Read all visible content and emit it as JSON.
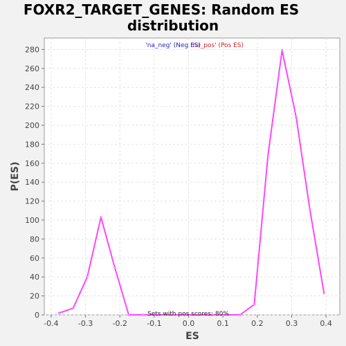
{
  "chart_data": {
    "type": "line",
    "title_line1": "FOXR2_TARGET_GENES: Random ES",
    "title_line2": "distribution",
    "xlabel": "ES",
    "ylabel": "P(ES)",
    "xlim": [
      -0.42,
      0.44
    ],
    "ylim": [
      0,
      292
    ],
    "xticks": [
      -0.4,
      -0.3,
      -0.2,
      -0.1,
      0.0,
      0.1,
      0.2,
      0.3,
      0.4
    ],
    "xtick_labels": [
      "-0.4",
      "-0.3",
      "-0.2",
      "-0.1",
      "0.0",
      "0.1",
      "0.2",
      "0.3",
      "0.4"
    ],
    "yticks": [
      0,
      20,
      40,
      60,
      80,
      100,
      120,
      140,
      160,
      180,
      200,
      220,
      240,
      260,
      280
    ],
    "ytick_labels": [
      "0",
      "20",
      "40",
      "60",
      "80",
      "100",
      "120",
      "140",
      "160",
      "180",
      "200",
      "220",
      "240",
      "260",
      "280"
    ],
    "grid": true,
    "legend": {
      "neg_label": "'na_neg' (Neg ES)",
      "pos_label": "'na_pos' (Pos ES)",
      "neg_color": "#2222cc",
      "pos_color": "#cc2222",
      "placement": "top-center"
    },
    "annotation": "Sets with pos scores: 80%",
    "series": [
      {
        "color": "#ff44ff",
        "x": [
          -0.377,
          -0.336,
          -0.295,
          -0.255,
          -0.215,
          -0.174,
          -0.133,
          -0.093,
          -0.052,
          -0.012,
          0.029,
          0.069,
          0.11,
          0.15,
          0.191,
          0.231,
          0.272,
          0.313,
          0.353,
          0.394
        ],
        "y": [
          2,
          7,
          40,
          103,
          50,
          0,
          0,
          0,
          0,
          0,
          0,
          0,
          0,
          0,
          11,
          168,
          279,
          209,
          111,
          23
        ]
      }
    ]
  }
}
